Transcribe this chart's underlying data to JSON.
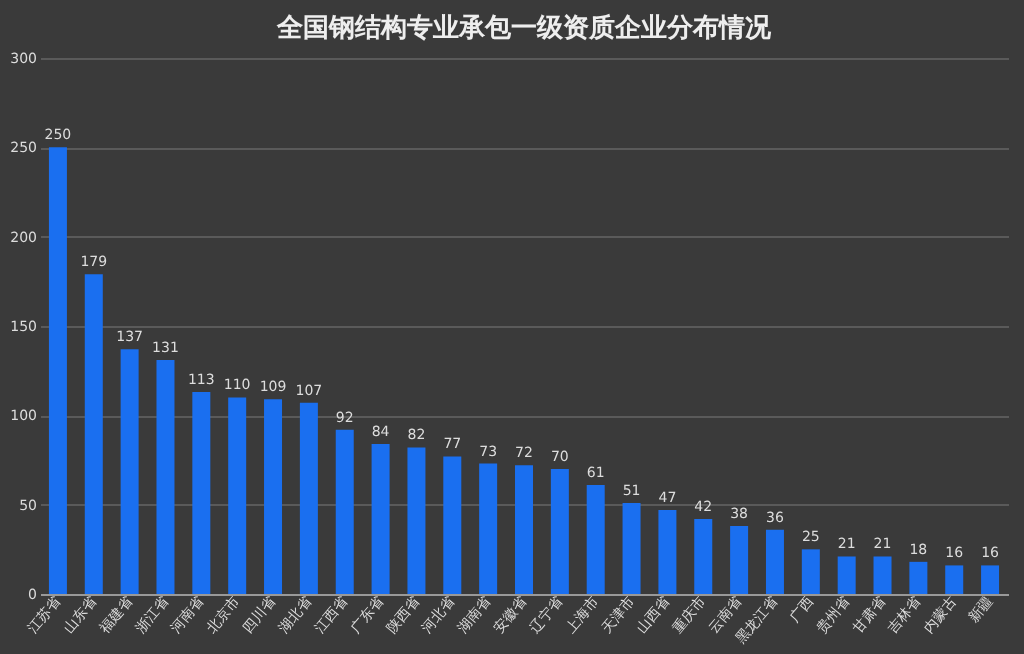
{
  "chart_data": {
    "type": "bar",
    "title": "全国钢结构专业承包一级资质企业分布情况",
    "categories": [
      "江苏省",
      "山东省",
      "福建省",
      "浙江省",
      "河南省",
      "北京市",
      "四川省",
      "湖北省",
      "江西省",
      "广东省",
      "陕西省",
      "河北省",
      "湖南省",
      "安徽省",
      "辽宁省",
      "上海市",
      "天津市",
      "山西省",
      "重庆市",
      "云南省",
      "黑龙江省",
      "广西",
      "贵州省",
      "甘肃省",
      "吉林省",
      "内蒙古",
      "新疆"
    ],
    "values": [
      250,
      179,
      137,
      131,
      113,
      110,
      109,
      107,
      92,
      84,
      82,
      77,
      73,
      72,
      70,
      61,
      51,
      47,
      42,
      38,
      36,
      25,
      21,
      21,
      18,
      16,
      16
    ],
    "color": "#1a6ff0",
    "ylim": [
      0,
      300
    ],
    "yticks": [
      0,
      50,
      100,
      150,
      200,
      250,
      300
    ],
    "grid": "y",
    "data_labels": true
  }
}
